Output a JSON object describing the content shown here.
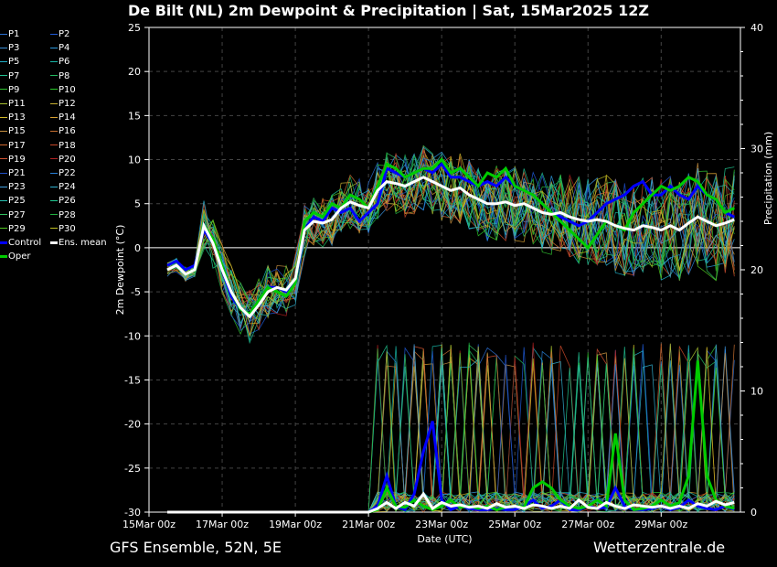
{
  "header": {
    "title": "De Bilt  (NL)  2m Dewpoint & Precipitation | Sat, 15Mar2025 12Z"
  },
  "footer": {
    "left": "GFS Ensemble, 52N, 5E",
    "right": "Wetterzentrale.de"
  },
  "legend": {
    "items": [
      {
        "label": "P1",
        "color": "#2a6fd0"
      },
      {
        "label": "P2",
        "color": "#1e5ad8"
      },
      {
        "label": "P3",
        "color": "#3a8fd8"
      },
      {
        "label": "P4",
        "color": "#2c9ae0"
      },
      {
        "label": "P5",
        "color": "#20b0c8"
      },
      {
        "label": "P6",
        "color": "#18b8a8"
      },
      {
        "label": "P7",
        "color": "#20c090"
      },
      {
        "label": "P8",
        "color": "#22b860"
      },
      {
        "label": "P9",
        "color": "#30c030"
      },
      {
        "label": "P10",
        "color": "#28c828"
      },
      {
        "label": "P11",
        "color": "#a8c030"
      },
      {
        "label": "P12",
        "color": "#c8b030"
      },
      {
        "label": "P13",
        "color": "#d0b828"
      },
      {
        "label": "P14",
        "color": "#d8a030"
      },
      {
        "label": "P15",
        "color": "#c89040"
      },
      {
        "label": "P16",
        "color": "#c87030"
      },
      {
        "label": "P17",
        "color": "#d06830"
      },
      {
        "label": "P18",
        "color": "#c84828"
      },
      {
        "label": "P19",
        "color": "#d05030"
      },
      {
        "label": "P20",
        "color": "#b02020"
      },
      {
        "label": "P21",
        "color": "#2050c8"
      },
      {
        "label": "P22",
        "color": "#2880d8"
      },
      {
        "label": "P23",
        "color": "#40a0e0"
      },
      {
        "label": "P24",
        "color": "#30b0d0"
      },
      {
        "label": "P25",
        "color": "#28c0b0"
      },
      {
        "label": "P26",
        "color": "#20c890"
      },
      {
        "label": "P27",
        "color": "#30c060"
      },
      {
        "label": "P28",
        "color": "#20b040"
      },
      {
        "label": "P29",
        "color": "#50c820"
      },
      {
        "label": "P30",
        "color": "#c0c020"
      },
      {
        "label": "Control",
        "color": "#0000ff"
      },
      {
        "label": "Ens. mean",
        "color": "#ffffff"
      },
      {
        "label": "Oper",
        "color": "#00cc00"
      }
    ]
  },
  "chart_data": {
    "type": "line",
    "xlabel": "Date (UTC)",
    "ylabel": "2m Dewpoint (°C)",
    "y2label": "Precipitation (mm)",
    "ylim": [
      -30,
      25
    ],
    "y2lim": [
      0,
      40
    ],
    "yticks": [
      25,
      20,
      15,
      10,
      5,
      0,
      -5,
      -10,
      -15,
      -20,
      -25,
      -30
    ],
    "y2ticks": [
      40,
      30,
      20,
      10,
      0
    ],
    "xticks": [
      "15Mar 00z",
      "17Mar 00z",
      "19Mar 00z",
      "21Mar 00z",
      "23Mar 00z",
      "25Mar 00z",
      "27Mar 00z",
      "29Mar 00z"
    ],
    "x_unit": "hours after 15Mar 00z, 6-hourly from 15Mar 12z",
    "grid": true,
    "colors": {
      "oper": "#00cc00",
      "control": "#0000ff",
      "mean": "#ffffff"
    },
    "series": [
      {
        "name": "Oper",
        "dewpoint": [
          -2.5,
          -2,
          -3,
          -2.5,
          2.5,
          1,
          -2,
          -5,
          -7,
          -7.5,
          -6,
          -4.5,
          -5,
          -5.5,
          -4,
          3,
          4,
          3.5,
          5,
          4.5,
          6,
          5.5,
          4.5,
          7,
          9.5,
          9,
          8,
          8.5,
          9,
          9,
          10,
          8.5,
          9,
          8,
          7,
          8.5,
          8,
          9,
          7,
          6.5,
          6,
          5,
          4,
          3,
          2,
          1,
          0,
          1.5,
          3,
          2.5,
          2,
          4,
          5,
          6,
          7,
          6.5,
          7,
          8,
          7.5,
          6,
          5.5,
          4,
          4.5
        ],
        "precip": [
          0,
          0,
          0,
          0,
          0,
          0,
          0,
          0,
          0,
          0,
          0,
          0,
          0,
          0,
          0,
          0,
          0,
          0,
          0,
          0,
          0,
          0,
          0,
          0.2,
          2,
          0.5,
          0.4,
          1,
          0.5,
          0.2,
          0.5,
          1,
          0.4,
          0.5,
          0.3,
          0.5,
          0.2,
          0.4,
          0.5,
          0.4,
          2,
          2.5,
          2,
          1,
          0.5,
          0.3,
          0.5,
          1,
          0.5,
          6.5,
          1,
          0.2,
          0.3,
          0.5,
          1,
          0.5,
          0.8,
          3,
          12.5,
          3,
          1,
          0.5,
          0.3
        ]
      },
      {
        "name": "Control",
        "dewpoint": [
          -2,
          -1.5,
          -2.5,
          -2,
          2,
          0.5,
          -2.5,
          -5.5,
          -7,
          -7.5,
          -6,
          -4.5,
          -4.5,
          -5,
          -4,
          2,
          3.5,
          3,
          4.5,
          4,
          4.5,
          3,
          4,
          5,
          9,
          8.5,
          8,
          8.5,
          9,
          8.5,
          9.5,
          8,
          8,
          7.5,
          7,
          7.5,
          7,
          8,
          7,
          6.5,
          6,
          5,
          4,
          3.5,
          3,
          2.5,
          3,
          4,
          5,
          5.5,
          6,
          7,
          7.5,
          6,
          6,
          7,
          6,
          5.5,
          7,
          6,
          5.5,
          4,
          3.5
        ],
        "precip": [
          0,
          0,
          0,
          0,
          0,
          0,
          0,
          0,
          0,
          0,
          0,
          0,
          0,
          0,
          0,
          0,
          0,
          0,
          0,
          0,
          0,
          0,
          0,
          0.5,
          3,
          0.5,
          0.2,
          1.5,
          5,
          7.5,
          1,
          0.2,
          0.5,
          0.3,
          0.2,
          0.2,
          0.3,
          0.2,
          0.2,
          0.5,
          1,
          0.3,
          0.5,
          1,
          0.2,
          0.2,
          0.5,
          0.3,
          0.4,
          2,
          0.5,
          0.2,
          0.2,
          0.3,
          0.5,
          0.2,
          0.4,
          1,
          0.5,
          0.3,
          0.2,
          0.5,
          0.2
        ]
      },
      {
        "name": "Ens. mean",
        "dewpoint": [
          -2.5,
          -2,
          -3,
          -2.5,
          2.5,
          0.5,
          -2.5,
          -5,
          -6.8,
          -7.8,
          -6.5,
          -5,
          -4.5,
          -4.8,
          -3.5,
          2,
          3,
          2.8,
          3.2,
          4.5,
          5.2,
          4.8,
          4.5,
          6.5,
          7.5,
          7.3,
          7,
          7.5,
          8,
          7.5,
          7,
          6.5,
          6.8,
          6,
          5.5,
          5,
          5,
          5.2,
          4.8,
          5,
          4.5,
          4,
          3.8,
          4,
          3.5,
          3.2,
          3,
          3.2,
          3,
          2.5,
          2.2,
          2,
          2.5,
          2.3,
          2,
          2.5,
          2,
          2.8,
          3.5,
          3,
          2.5,
          2.8,
          3.2
        ],
        "precip": [
          0,
          0,
          0,
          0,
          0,
          0,
          0,
          0,
          0,
          0,
          0,
          0,
          0,
          0,
          0,
          0,
          0,
          0,
          0,
          0,
          0,
          0,
          0,
          0.3,
          0.8,
          0.3,
          0.8,
          0.5,
          1.5,
          0.3,
          0.8,
          0.5,
          0.6,
          0.4,
          0.5,
          0.3,
          0.7,
          0.4,
          0.5,
          0.3,
          0.6,
          0.5,
          0.3,
          0.5,
          0.3,
          1,
          0.4,
          0.3,
          0.8,
          0.5,
          0.3,
          0.6,
          0.5,
          0.4,
          0.5,
          0.3,
          0.5,
          0.3,
          0.7,
          0.5,
          0.9,
          0.6,
          0.8
        ]
      }
    ]
  }
}
